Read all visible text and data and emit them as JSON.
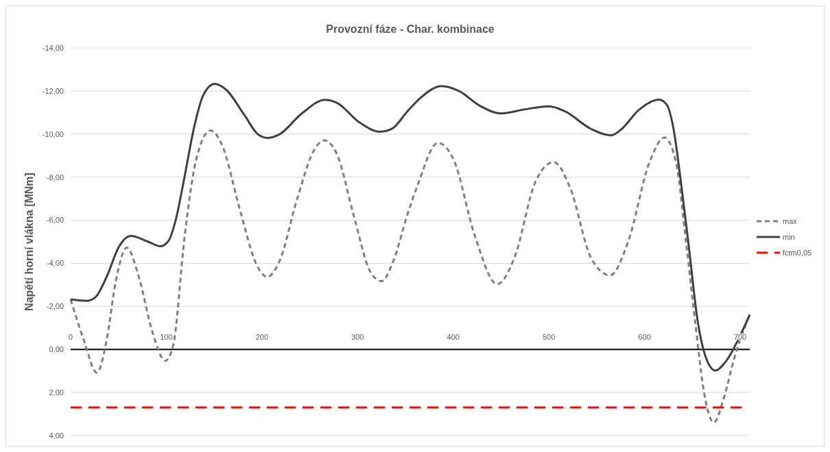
{
  "chart_data": {
    "type": "line",
    "title": "Provozní fáze - Char. kombinace",
    "ylabel": "Napětí horní vlákna [MNm]",
    "xlim": [
      0,
      710
    ],
    "xticks": [
      0,
      100,
      200,
      300,
      400,
      500,
      600,
      700
    ],
    "ylim": [
      4,
      -14
    ],
    "yticks": [
      {
        "value": -14,
        "label": "-14,00"
      },
      {
        "value": -12,
        "label": "-12,00"
      },
      {
        "value": -10,
        "label": "-10,00"
      },
      {
        "value": -8,
        "label": "-8,00"
      },
      {
        "value": -6,
        "label": "-6,00"
      },
      {
        "value": -4,
        "label": "-4,00"
      },
      {
        "value": -2,
        "label": "-2,00"
      },
      {
        "value": 0,
        "label": "0,00"
      },
      {
        "value": 2,
        "label": "2,00"
      },
      {
        "value": 4,
        "label": "4,00"
      }
    ],
    "grid": "y",
    "legend": "right",
    "series": [
      {
        "name": "max",
        "color": "#7f7f7f",
        "line_style": "dashed",
        "x": [
          0,
          13.6,
          27.5,
          37.7,
          47.3,
          58.8,
          71,
          85.6,
          99,
          107.4,
          119,
          131,
          146.3,
          157.8,
          177,
          194,
          205.5,
          218,
          237,
          254,
          265,
          278,
          297,
          313,
          325,
          338,
          352,
          362,
          384,
          400.6,
          422.6,
          446,
          464,
          486,
          505,
          522,
          544,
          564,
          583,
          605,
          621,
          633,
          644,
          652.4,
          663.4,
          672.5,
          682.7,
          693.9,
          710
        ],
        "values": [
          -2.32,
          -0.45,
          1.08,
          -0.45,
          -3.19,
          -4.73,
          -3.41,
          -0.79,
          0.53,
          -0.23,
          -5.17,
          -8.77,
          -10.17,
          -9.54,
          -6.48,
          -3.97,
          -3.37,
          -4.06,
          -7.02,
          -9.21,
          -9.71,
          -9.11,
          -6.04,
          -3.63,
          -3.17,
          -4.18,
          -6.25,
          -7.53,
          -9.59,
          -8.79,
          -5.27,
          -3.03,
          -4.26,
          -7.79,
          -8.7,
          -7.53,
          -4.26,
          -3.44,
          -5.02,
          -8.67,
          -9.84,
          -8.67,
          -4.76,
          -1.49,
          2.29,
          3.39,
          2.29,
          0.4,
          -1.62
        ]
      },
      {
        "name": "min",
        "color": "#404040",
        "line_style": "solid",
        "x": [
          0,
          17,
          26,
          38,
          50,
          63,
          81,
          94,
          102.5,
          110,
          119,
          129,
          139,
          150.6,
          162.5,
          182,
          196,
          206,
          218,
          242,
          266,
          278,
          302,
          323.6,
          336,
          352.6,
          366,
          388,
          406,
          428,
          450,
          475,
          500,
          516.7,
          544,
          565,
          575,
          594,
          615,
          623,
          630,
          638,
          647,
          655,
          663.4,
          674,
          685.5,
          699.5,
          710
        ],
        "values": [
          -2.32,
          -2.26,
          -2.43,
          -3.41,
          -4.73,
          -5.27,
          -5.0,
          -4.79,
          -5.05,
          -6.04,
          -8.0,
          -10.3,
          -11.84,
          -12.33,
          -12.06,
          -10.86,
          -9.98,
          -9.82,
          -9.98,
          -10.97,
          -11.59,
          -11.46,
          -10.54,
          -10.11,
          -10.25,
          -11.08,
          -11.69,
          -12.23,
          -12.0,
          -11.31,
          -10.96,
          -11.15,
          -11.29,
          -11.06,
          -10.24,
          -9.94,
          -10.19,
          -11.12,
          -11.6,
          -11.38,
          -10.32,
          -7.79,
          -4.51,
          -1.49,
          0.28,
          0.98,
          0.53,
          -0.6,
          -1.62
        ]
      },
      {
        "name": "fctm0,05",
        "color": "#ff0000",
        "line_style": "longdash",
        "x": [
          0,
          703
        ],
        "values": [
          2.7,
          2.7
        ]
      }
    ]
  }
}
